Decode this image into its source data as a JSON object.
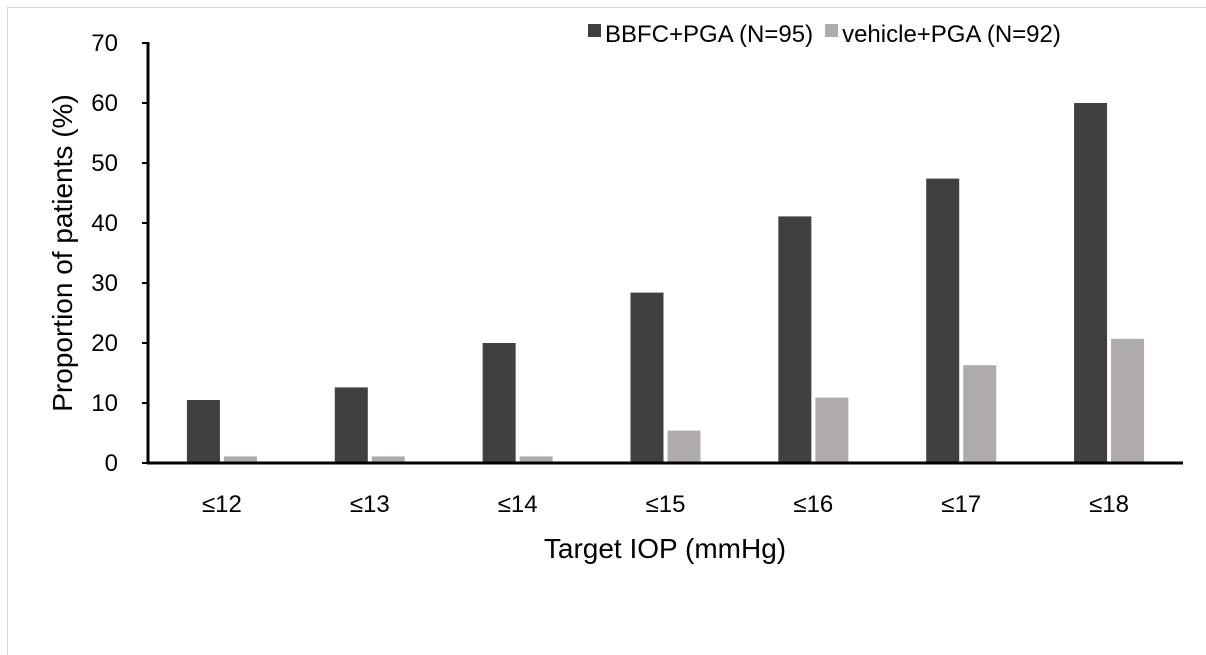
{
  "chart_data": {
    "type": "bar",
    "categories": [
      "≤12",
      "≤13",
      "≤14",
      "≤15",
      "≤16",
      "≤17",
      "≤18"
    ],
    "series": [
      {
        "name": "BBFC+PGA (N=95)",
        "color": "#404040",
        "values": [
          10.5,
          12.6,
          20.0,
          28.4,
          41.1,
          47.4,
          60.0
        ]
      },
      {
        "name": "vehicle+PGA (N=92)",
        "color": "#afabab",
        "values": [
          1.1,
          1.1,
          1.1,
          5.4,
          10.9,
          16.3,
          20.7
        ]
      }
    ],
    "xlabel": "Target IOP (mmHg)",
    "ylabel": "Proportion of patients (%)",
    "ylim": [
      0,
      70
    ],
    "yticks": [
      0,
      10,
      20,
      30,
      40,
      50,
      60,
      70
    ],
    "grid": false,
    "legend_position": "top-right"
  }
}
